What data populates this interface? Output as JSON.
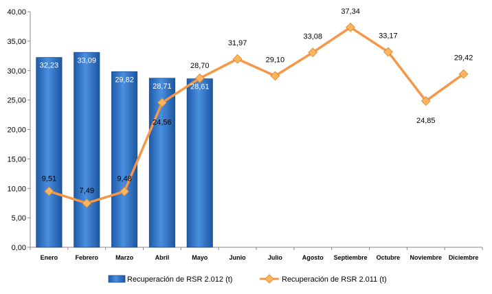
{
  "chart_data": {
    "type": "bar+line",
    "categories": [
      "Enero",
      "Febrero",
      "Marzo",
      "Abril",
      "Mayo",
      "Junio",
      "Julio",
      "Agosto",
      "Septiembre",
      "Octubre",
      "Noviembre",
      "Diciembre"
    ],
    "series": [
      {
        "name": "Recuperación de RSR 2.012 (t)",
        "type": "bar",
        "values": [
          32.23,
          33.09,
          29.82,
          28.71,
          28.61,
          null,
          null,
          null,
          null,
          null,
          null,
          null
        ],
        "labels": [
          "32,23",
          "33,09",
          "29,82",
          "28,71",
          "28,61"
        ],
        "color": "#3a7bd5"
      },
      {
        "name": "Recuperación de RSR 2.011 (t)",
        "type": "line",
        "values": [
          9.51,
          7.49,
          9.48,
          24.56,
          28.7,
          31.97,
          29.1,
          33.08,
          37.34,
          33.17,
          24.85,
          29.42
        ],
        "labels": [
          "9,51",
          "7,49",
          "9,48",
          "24,56",
          "28,70",
          "31,97",
          "29,10",
          "33,08",
          "37,34",
          "33,17",
          "24,85",
          "29,42"
        ],
        "color": "#f79646"
      }
    ],
    "y_ticks": [
      "0,00",
      "5,00",
      "10,00",
      "15,00",
      "20,00",
      "25,00",
      "30,00",
      "35,00",
      "40,00"
    ],
    "ylim": [
      0,
      40
    ],
    "legend_position": "bottom"
  }
}
